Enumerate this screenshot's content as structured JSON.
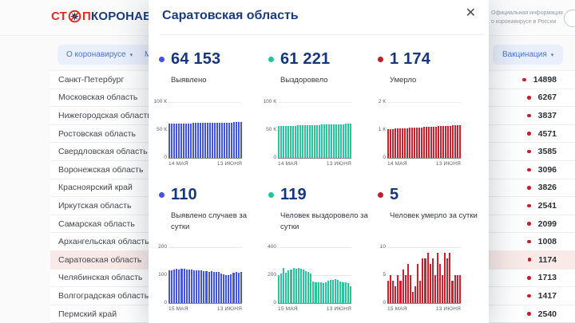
{
  "page": {
    "logo": {
      "red1": "СТ",
      "red2": "П",
      "blue": "КОРОНАВИРУС"
    },
    "official_info": {
      "line1": "Официальная информация",
      "line2": "о коронавирусе в России"
    },
    "nav": {
      "about": "О коронавирусе",
      "measures_partial": "М",
      "vaccination": "Вакцинация",
      "caret": "▾"
    },
    "value_dot_color": "#c0232d",
    "highlight_color": "#f9eae8",
    "regions": [
      {
        "name": "Санкт-Петербург",
        "value": "14898"
      },
      {
        "name": "Московская область",
        "value": "6267"
      },
      {
        "name": "Нижегородская область",
        "value": "3837"
      },
      {
        "name": "Ростовская область",
        "value": "4571"
      },
      {
        "name": "Свердловская область",
        "value": "3585"
      },
      {
        "name": "Воронежская область",
        "value": "3096"
      },
      {
        "name": "Красноярский край",
        "value": "3826"
      },
      {
        "name": "Иркутская область",
        "value": "2541"
      },
      {
        "name": "Самарская область",
        "value": "2099"
      },
      {
        "name": "Архангельская область",
        "value": "1008"
      },
      {
        "name": "Саратовская область",
        "value": "1174",
        "highlight": true
      },
      {
        "name": "Челябинская область",
        "value": "1713"
      },
      {
        "name": "Волгоградская область",
        "value": "1417"
      },
      {
        "name": "Пермский край",
        "value": "2540"
      }
    ]
  },
  "modal": {
    "title": "Саратовская область",
    "close_glyph": "✕",
    "stats_total": [
      {
        "value": "64 153",
        "label": "Выявлено",
        "color": "#4353e4"
      },
      {
        "value": "61 221",
        "label": "Выздоровело",
        "color": "#21c49a"
      },
      {
        "value": "1 174",
        "label": "Умерло",
        "color": "#c01f2b"
      }
    ],
    "stats_daily": [
      {
        "value": "110",
        "label": "Выявлено случаев за сутки",
        "color": "#4353e4"
      },
      {
        "value": "119",
        "label": "Человек выздоровело за сутки",
        "color": "#21c49a"
      },
      {
        "value": "5",
        "label": "Человек умерло за сутки",
        "color": "#c01f2b"
      }
    ]
  },
  "chart_data": [
    {
      "type": "bar",
      "name": "confirmed-total-chart",
      "title": "Выявлено (всего)",
      "color": "#4355e8",
      "ylim": [
        0,
        100000
      ],
      "y_ticks": [
        "100 К",
        "50 К",
        "0"
      ],
      "x_start": "14 МАЯ",
      "x_end": "13 ИЮНЯ",
      "grid": true,
      "legend": "none",
      "values": [
        61150,
        61270,
        61390,
        61500,
        61610,
        61715,
        61820,
        61925,
        62025,
        62120,
        62215,
        62310,
        62400,
        62490,
        62580,
        62665,
        62750,
        62835,
        62915,
        62995,
        63075,
        63155,
        63235,
        63315,
        63390,
        63465,
        63545,
        63640,
        63760,
        63900,
        64153
      ]
    },
    {
      "type": "bar",
      "name": "recovered-total-chart",
      "title": "Выздоровело (всего)",
      "color": "#27c79e",
      "ylim": [
        0,
        100000
      ],
      "y_ticks": [
        "100 К",
        "50 К",
        "0"
      ],
      "x_start": "14 МАЯ",
      "x_end": "13 ИЮНЯ",
      "grid": true,
      "legend": "none",
      "values": [
        56750,
        56910,
        57070,
        57230,
        57390,
        57545,
        57700,
        57850,
        58000,
        58150,
        58295,
        58440,
        58585,
        58725,
        58865,
        59005,
        59140,
        59275,
        59410,
        59545,
        59675,
        59805,
        59935,
        60060,
        60185,
        60310,
        60435,
        60560,
        60740,
        60980,
        61221
      ]
    },
    {
      "type": "bar",
      "name": "deaths-total-chart",
      "title": "Умерло (всего)",
      "color": "#d01f2e",
      "ylim": [
        0,
        2000
      ],
      "y_ticks": [
        "2 К",
        "1 К",
        "0"
      ],
      "x_start": "14 МАЯ",
      "x_end": "13 ИЮНЯ",
      "grid": true,
      "legend": "none",
      "values": [
        1028,
        1033,
        1038,
        1043,
        1048,
        1053,
        1058,
        1063,
        1068,
        1073,
        1078,
        1083,
        1088,
        1093,
        1098,
        1103,
        1107,
        1111,
        1115,
        1119,
        1124,
        1129,
        1134,
        1139,
        1144,
        1149,
        1154,
        1159,
        1164,
        1169,
        1174
      ]
    },
    {
      "type": "bar",
      "name": "confirmed-daily-chart",
      "title": "Выявлено случаев за сутки",
      "color": "#4355e8",
      "ylim": [
        0,
        200
      ],
      "y_ticks": [
        "200",
        "100",
        "0"
      ],
      "x_start": "15 МАЯ",
      "x_end": "13 ИЮНЯ",
      "grid": true,
      "legend": "none",
      "values": [
        116,
        118,
        120,
        122,
        121,
        122,
        122,
        121,
        120,
        119,
        118,
        118,
        117,
        116,
        114,
        113,
        112,
        114,
        111,
        110,
        112,
        107,
        104,
        101,
        100,
        103,
        108,
        110,
        109,
        110
      ]
    },
    {
      "type": "bar",
      "name": "recovered-daily-chart",
      "title": "Человек выздоровело за сутки",
      "color": "#27c79e",
      "ylim": [
        0,
        400
      ],
      "y_ticks": [
        "400",
        "200",
        "0"
      ],
      "x_start": "15 МАЯ",
      "x_end": "13 ИЮНЯ",
      "grid": true,
      "legend": "none",
      "values": [
        200,
        212,
        254,
        216,
        232,
        242,
        250,
        246,
        250,
        244,
        238,
        230,
        224,
        214,
        152,
        146,
        150,
        148,
        144,
        150,
        158,
        163,
        168,
        170,
        164,
        157,
        150,
        147,
        141,
        119
      ]
    },
    {
      "type": "bar",
      "name": "deaths-daily-chart",
      "title": "Человек умерло за сутки",
      "color": "#d01f2e",
      "ylim": [
        0,
        10
      ],
      "y_ticks": [
        "10",
        "5",
        "0"
      ],
      "x_start": "15 МАЯ",
      "x_end": "13 ИЮНЯ",
      "grid": true,
      "legend": "none",
      "values": [
        4,
        5,
        4,
        3,
        5,
        4,
        6,
        5,
        7,
        5,
        2,
        3,
        7,
        4,
        8,
        8,
        9,
        7,
        8,
        5,
        9,
        7,
        5,
        9,
        8,
        9,
        4,
        5,
        5,
        5
      ]
    }
  ]
}
